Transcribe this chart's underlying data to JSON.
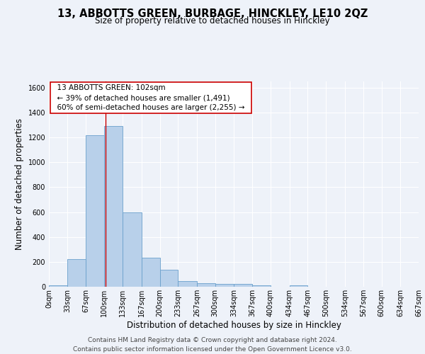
{
  "title": "13, ABBOTTS GREEN, BURBAGE, HINCKLEY, LE10 2QZ",
  "subtitle": "Size of property relative to detached houses in Hinckley",
  "xlabel": "Distribution of detached houses by size in Hinckley",
  "ylabel": "Number of detached properties",
  "footer_line1": "Contains HM Land Registry data © Crown copyright and database right 2024.",
  "footer_line2": "Contains public sector information licensed under the Open Government Licence v3.0.",
  "annotation_line1": "13 ABBOTTS GREEN: 102sqm",
  "annotation_line2": "← 39% of detached houses are smaller (1,491)",
  "annotation_line3": "60% of semi-detached houses are larger (2,255) →",
  "bar_edges": [
    0,
    33,
    67,
    100,
    133,
    167,
    200,
    233,
    267,
    300,
    334,
    367,
    400,
    434,
    467,
    500,
    534,
    567,
    600,
    634,
    667
  ],
  "bar_heights": [
    10,
    220,
    1220,
    1290,
    595,
    235,
    135,
    48,
    30,
    22,
    22,
    10,
    0,
    12,
    0,
    0,
    0,
    0,
    0,
    0
  ],
  "bar_color": "#b8d0ea",
  "bar_edge_color": "#6aa0cc",
  "red_line_x": 102,
  "red_line_color": "#cc0000",
  "annotation_box_edge_color": "#cc0000",
  "annotation_box_face_color": "#ffffff",
  "ylim": [
    0,
    1650
  ],
  "xlim": [
    0,
    667
  ],
  "background_color": "#eef2f9",
  "grid_color": "#ffffff",
  "title_fontsize": 10.5,
  "subtitle_fontsize": 8.5,
  "axis_label_fontsize": 8.5,
  "tick_fontsize": 7,
  "annotation_fontsize": 7.5,
  "footer_fontsize": 6.5
}
